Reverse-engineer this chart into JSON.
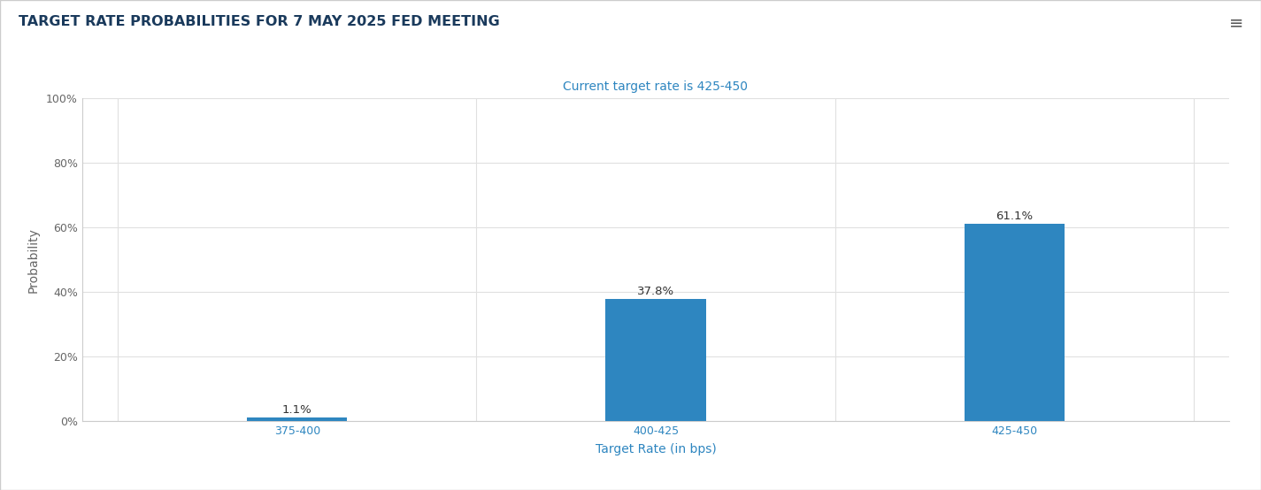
{
  "title": "TARGET RATE PROBABILITIES FOR 7 MAY 2025 FED MEETING",
  "subtitle": "Current target rate is 425-450",
  "xlabel": "Target Rate (in bps)",
  "ylabel": "Probability",
  "categories": [
    "375-400",
    "400-425",
    "425-450"
  ],
  "values": [
    1.1,
    37.8,
    61.1
  ],
  "bar_color": "#2e86c0",
  "title_color": "#1a3a5c",
  "subtitle_color": "#2e86c0",
  "xlabel_color": "#2e86c0",
  "ylabel_color": "#666666",
  "tick_label_color": "#2e86c0",
  "bar_label_color": "#333333",
  "background_color": "#ffffff",
  "grid_color": "#e0e0e0",
  "ylim": [
    0,
    100
  ],
  "yticks": [
    0,
    20,
    40,
    60,
    80,
    100
  ],
  "ytick_labels": [
    "0%",
    "20%",
    "40%",
    "60%",
    "80%",
    "100%"
  ],
  "title_fontsize": 11.5,
  "subtitle_fontsize": 10,
  "xlabel_fontsize": 10,
  "ylabel_fontsize": 10,
  "tick_fontsize": 9,
  "bar_label_fontsize": 9.5,
  "border_color": "#cccccc",
  "figwidth": 14.25,
  "figheight": 5.54,
  "dpi": 100
}
